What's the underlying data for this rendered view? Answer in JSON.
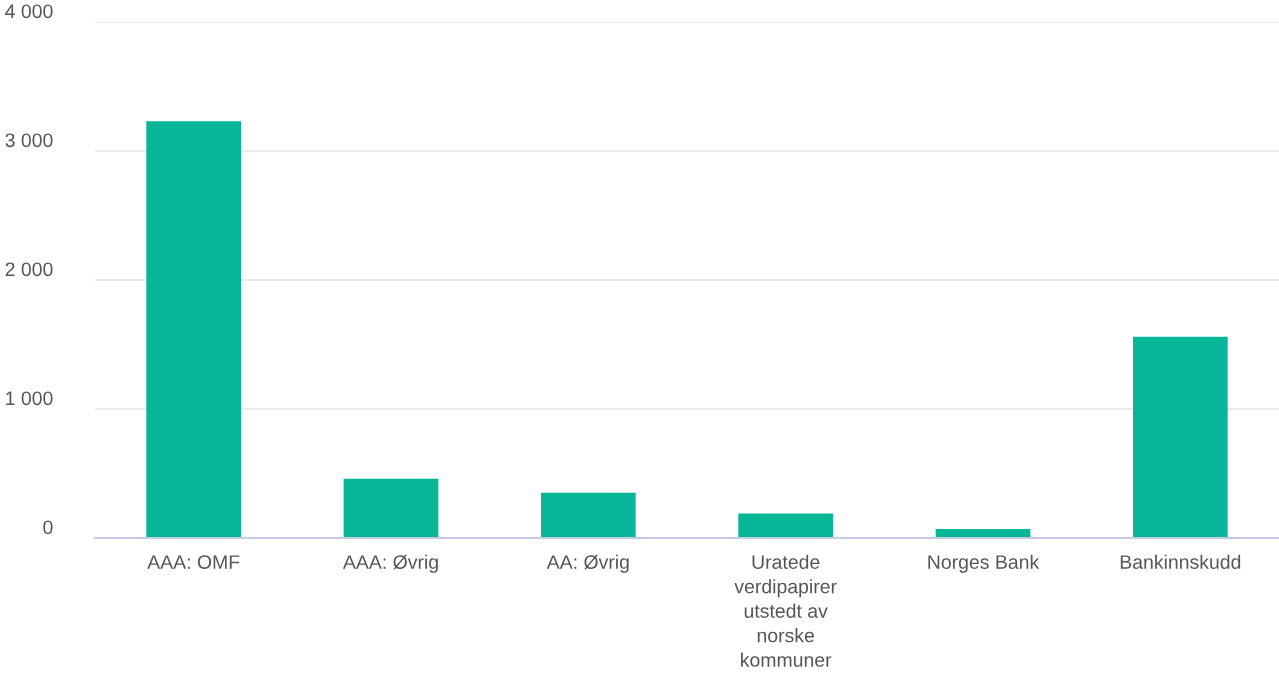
{
  "chart_data": {
    "type": "bar",
    "categories": [
      "AAA: OMF",
      "AAA: Øvrig",
      "AA: Øvrig",
      "Uratede\nverdipapirer\nutstedt av\nnorske\nkommuner",
      "Norges Bank",
      "Bankinnskudd"
    ],
    "values": [
      3230,
      460,
      350,
      190,
      70,
      1560
    ],
    "color": "#06b696",
    "ylim": [
      0,
      4000
    ],
    "yticks": [
      {
        "value": 0,
        "label": "0"
      },
      {
        "value": 1000,
        "label": "1 000"
      },
      {
        "value": 2000,
        "label": "2 000"
      },
      {
        "value": 3000,
        "label": "3 000"
      },
      {
        "value": 4000,
        "label": "4 000"
      }
    ],
    "grid": "y"
  }
}
